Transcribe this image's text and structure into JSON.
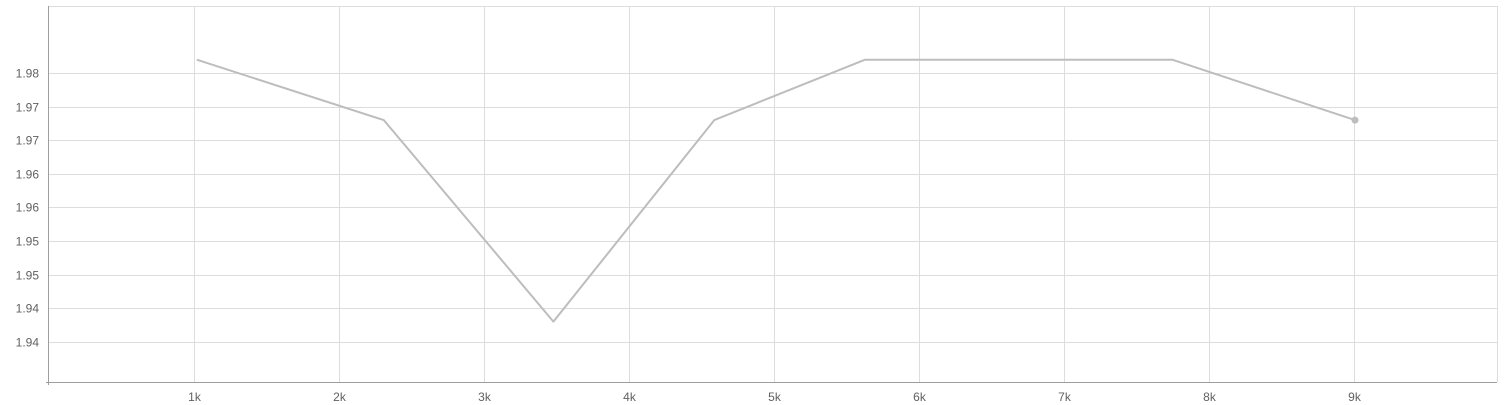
{
  "chart_data": {
    "type": "line",
    "title": "",
    "xlabel": "",
    "ylabel": "",
    "xlim": [
      0,
      9990
    ],
    "ylim": [
      1.9315,
      1.9875
    ],
    "grid": true,
    "x_ticks": [
      {
        "value": 1000,
        "label": "1k"
      },
      {
        "value": 2000,
        "label": "2k"
      },
      {
        "value": 3000,
        "label": "3k"
      },
      {
        "value": 4000,
        "label": "4k"
      },
      {
        "value": 5000,
        "label": "5k"
      },
      {
        "value": 6000,
        "label": "6k"
      },
      {
        "value": 7000,
        "label": "7k"
      },
      {
        "value": 8000,
        "label": "8k"
      },
      {
        "value": 9000,
        "label": "9k"
      }
    ],
    "y_ticks": [
      {
        "value": 1.9375,
        "label": "1.94"
      },
      {
        "value": 1.9425,
        "label": "1.94"
      },
      {
        "value": 1.9475,
        "label": "1.95"
      },
      {
        "value": 1.9525,
        "label": "1.95"
      },
      {
        "value": 1.9575,
        "label": "1.96"
      },
      {
        "value": 1.9625,
        "label": "1.96"
      },
      {
        "value": 1.9675,
        "label": "1.97"
      },
      {
        "value": 1.9725,
        "label": "1.97"
      },
      {
        "value": 1.9775,
        "label": "1.98"
      }
    ],
    "series": [
      {
        "color": "#bdbdbd",
        "x": [
          1020,
          2310,
          3480,
          4590,
          5630,
          7750,
          9010
        ],
        "y": [
          1.9795,
          1.9705,
          1.9405,
          1.9705,
          1.9795,
          1.9795,
          1.9705
        ]
      }
    ]
  }
}
